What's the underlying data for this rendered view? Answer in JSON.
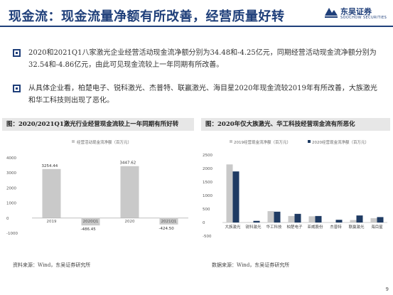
{
  "header": {
    "title": "现金流：现金流量净额有所改善，经营质量好转",
    "logo": {
      "cn": "东吴证券",
      "en": "SOOCHOW SECURITIES",
      "color": "#1f3f7a"
    }
  },
  "bullets": [
    "2020和2021Q1八家激光企业经营活动现金流净额分别为34.48和-4.25亿元，同期经营活动现金流净额分别为32.54和-4.86亿元，由此可见现金流较上一年同期有所改善。",
    "从具体企业看，柏楚电子、锐科激光、杰普特、联赢激光、海目星2020年现金流较2019年有所改善，大族激光和华工科技则出现了恶化。"
  ],
  "colors": {
    "accent": "#1f3f7a",
    "bar_light": "#c9c9c9",
    "bar_dark": "#1f3b63"
  },
  "chart_data": [
    {
      "type": "bar",
      "title": "图：2020/2021Q1激光行业经营现金流较上一年同期有所好转",
      "legend": "经营活动现金流净额（百万元）",
      "categories": [
        "2019",
        "2020Q1",
        "2020",
        "2021Q1"
      ],
      "values": [
        3254.44,
        -486.45,
        3447.62,
        -424.5
      ],
      "data_labels": [
        "3254.44",
        "-486.45",
        "3447.62",
        "-424.50"
      ],
      "ylim": [
        -1000,
        4000
      ],
      "yticks": [
        "4000",
        "3000",
        "2000",
        "1000",
        "0",
        "-1000"
      ],
      "grid": false,
      "source": "资料来源：Wind，东吴证券研究所"
    },
    {
      "type": "bar",
      "title": "图：2020年仅大族激光、华工科技经营现金流有所恶化",
      "categories": [
        "大族激光",
        "锐科激光",
        "华工科技",
        "柏楚电子",
        "亚威股份",
        "杰普特",
        "联赢激光",
        "海目星"
      ],
      "series": [
        {
          "name": "2019经营现金流净额（百万元）",
          "values": [
            2150,
            15,
            420,
            240,
            230,
            10,
            90,
            160
          ]
        },
        {
          "name": "2020经营现金流净额（百万元）",
          "values": [
            1890,
            60,
            400,
            320,
            240,
            100,
            260,
            200
          ]
        }
      ],
      "ylim": [
        -500,
        2500
      ],
      "yticks": [
        "2500",
        "2000",
        "1500",
        "1000",
        "500",
        "0",
        "-500"
      ],
      "grid": false,
      "source": "数据来源：Wind，东吴证券研究所"
    }
  ],
  "page_number": "9"
}
